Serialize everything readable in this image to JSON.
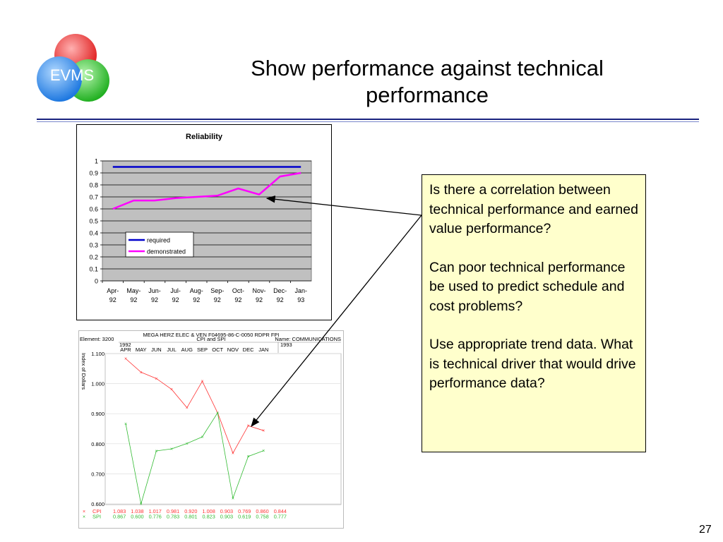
{
  "slide": {
    "logo_text": "EVMS",
    "title_line1": "Show performance against technical",
    "title_line2": "performance",
    "page_number": "27"
  },
  "callout": {
    "paragraph1": "Is there a correlation between technical performance and earned value performance?",
    "paragraph2": "Can poor technical performance be used to predict schedule and cost problems?",
    "paragraph3": "Use appropriate trend data. What is technical driver that would drive performance data?"
  },
  "colors": {
    "required": "#0000cc",
    "demonstrated": "#ff00ff",
    "plot_bg": "#c0c0c0",
    "cpi": "#ff3333",
    "spi": "#33bb33",
    "callout_bg": "#ffffcc",
    "rule": "#1a237e"
  },
  "chart_data": [
    {
      "type": "line",
      "title": "Reliability",
      "categories": [
        "Apr-92",
        "May-92",
        "Jun-92",
        "Jul-92",
        "Aug-92",
        "Sep-92",
        "Oct-92",
        "Nov-92",
        "Dec-92",
        "Jan-93"
      ],
      "category_lines": [
        [
          "Apr-",
          "92"
        ],
        [
          "May-",
          "92"
        ],
        [
          "Jun-",
          "92"
        ],
        [
          "Jul-",
          "92"
        ],
        [
          "Aug-",
          "92"
        ],
        [
          "Sep-",
          "92"
        ],
        [
          "Oct-",
          "92"
        ],
        [
          "Nov-",
          "92"
        ],
        [
          "Dec-",
          "92"
        ],
        [
          "Jan-",
          "93"
        ]
      ],
      "series": [
        {
          "name": "required",
          "values": [
            0.95,
            0.95,
            0.95,
            0.95,
            0.95,
            0.95,
            0.95,
            0.95,
            0.95,
            0.95
          ]
        },
        {
          "name": "demonstrated",
          "values": [
            0.6,
            0.67,
            0.67,
            0.69,
            0.7,
            0.71,
            0.77,
            0.72,
            0.87,
            0.9
          ]
        }
      ],
      "ylim": [
        0,
        1
      ],
      "yticks": [
        "0",
        "0.1",
        "0.2",
        "0.3",
        "0.4",
        "0.5",
        "0.6",
        "0.7",
        "0.8",
        "0.9",
        "1"
      ],
      "grid": true,
      "legend_position": "lower-left"
    },
    {
      "type": "line",
      "header_title": "MEGA HERZ ELEC & VEN F04695-86-C-0050 RDPR FPI",
      "header_element": "Element: 3200",
      "header_center": "CPI and SPI",
      "header_name": "Name: COMMUNICATIONS",
      "year1": "1992",
      "year2": "1993",
      "categories": [
        "APR",
        "MAY",
        "JUN",
        "JUL",
        "AUG",
        "SEP",
        "OCT",
        "NOV",
        "DEC",
        "JAN"
      ],
      "ylabel": "Index of Dollars",
      "ylim": [
        0.6,
        1.1
      ],
      "yticks": [
        "0.600",
        "0.700",
        "0.800",
        "0.900",
        "1.000",
        "1.100"
      ],
      "series": [
        {
          "name": "CPI",
          "values": [
            1.083,
            1.038,
            1.017,
            0.981,
            0.92,
            1.008,
            0.903,
            0.769,
            0.86,
            0.844
          ],
          "labels": [
            "1.083",
            "1.038",
            "1.017",
            "0.981",
            "0.920",
            "1.008",
            "0.903",
            "0.769",
            "0.860",
            "0.844"
          ]
        },
        {
          "name": "SPI",
          "values": [
            0.867,
            0.6,
            0.776,
            0.783,
            0.801,
            0.823,
            0.903,
            0.619,
            0.758,
            0.777
          ],
          "labels": [
            "0.867",
            "0.600",
            "0.776",
            "0.783",
            "0.801",
            "0.823",
            "0.903",
            "0.619",
            "0.758",
            "0.777"
          ]
        }
      ]
    }
  ]
}
